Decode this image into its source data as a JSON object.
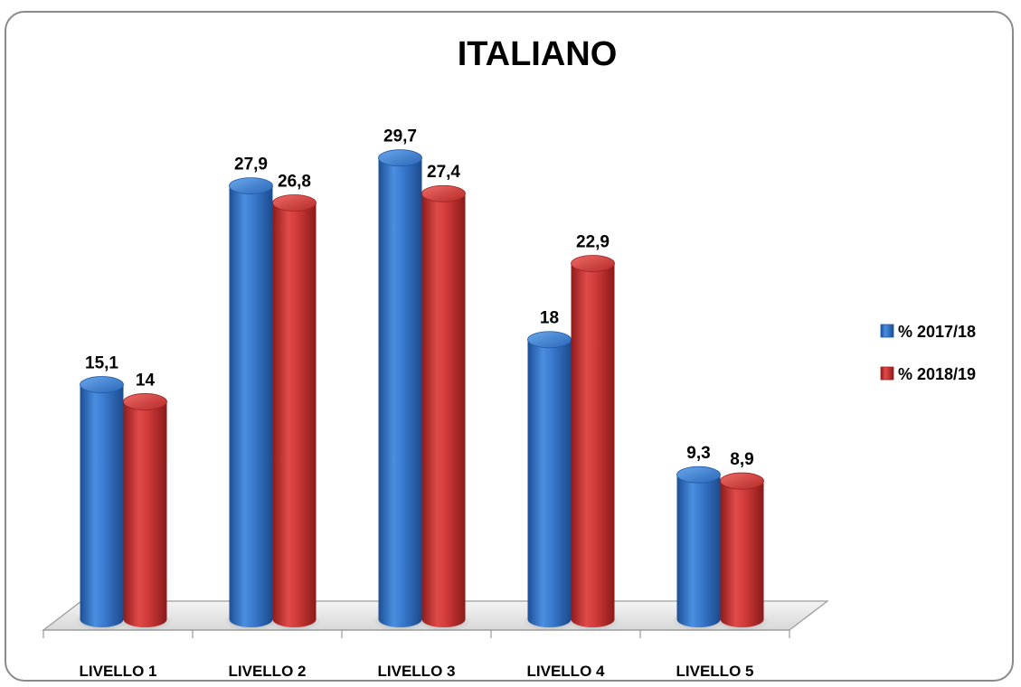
{
  "chart_data": {
    "type": "bar",
    "title": "ITALIANO",
    "categories": [
      "LIVELLO 1",
      "LIVELLO 2",
      "LIVELLO 3",
      "LIVELLO 4",
      "LIVELLO 5"
    ],
    "series": [
      {
        "name": "% 2017/18",
        "values": [
          15.1,
          27.9,
          29.7,
          18,
          9.3
        ],
        "labels": [
          "15,1",
          "27,9",
          "29,7",
          "18",
          "9,3"
        ],
        "color": "#2f6fc4"
      },
      {
        "name": "% 2018/19",
        "values": [
          14,
          26.8,
          27.4,
          22.9,
          8.9
        ],
        "labels": [
          "14",
          "26,8",
          "27,4",
          "22,9",
          "8,9"
        ],
        "color": "#c8302f"
      }
    ],
    "ylim": [
      0,
      33
    ],
    "grid": false,
    "legend_position": "right",
    "style": "3d-cylinder"
  }
}
